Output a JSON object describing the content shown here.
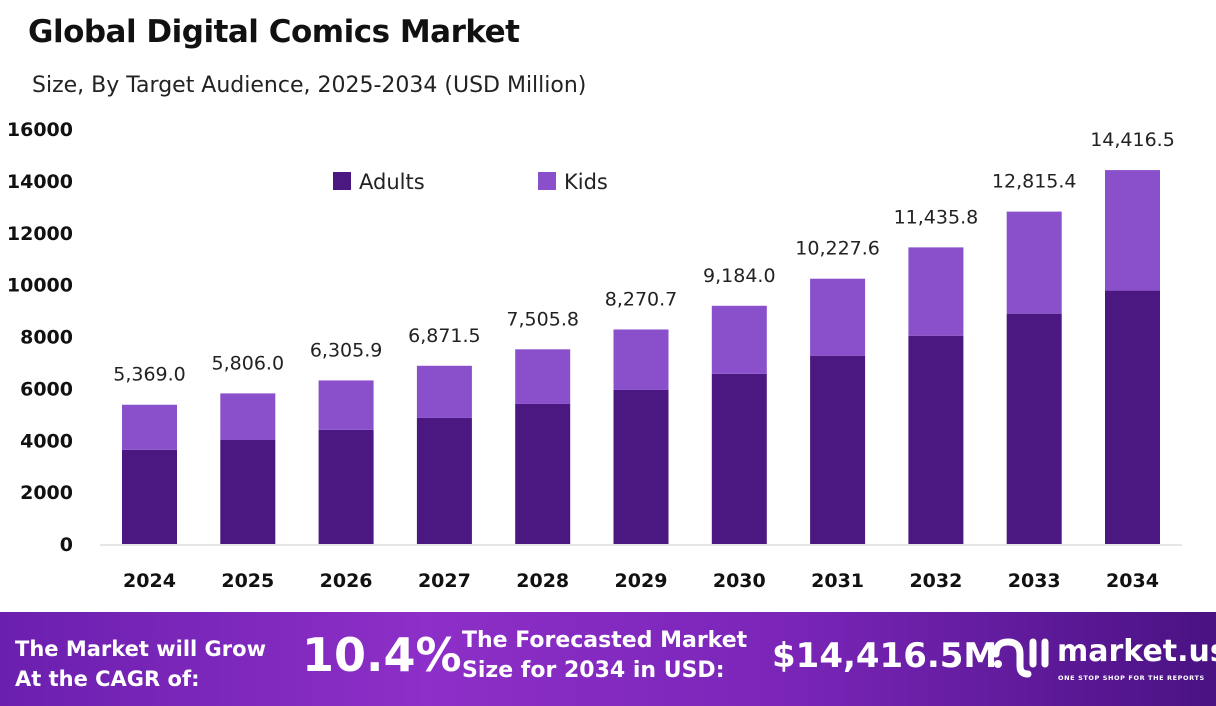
{
  "chart_data": {
    "type": "bar",
    "stacked": true,
    "title": "Global Digital Comics Market",
    "subtitle": "Size, By Target Audience, 2025-2034 (USD Million)",
    "categories": [
      "2024",
      "2025",
      "2026",
      "2027",
      "2028",
      "2029",
      "2030",
      "2031",
      "2032",
      "2033",
      "2034"
    ],
    "series": [
      {
        "name": "Adults",
        "color": "#4b1780",
        "values": [
          3630,
          4010,
          4400,
          4860,
          5400,
          5940,
          6560,
          7260,
          8030,
          8880,
          9770
        ]
      },
      {
        "name": "Kids",
        "color": "#8a4fcb",
        "values": [
          1739,
          1796,
          1906,
          2011,
          2106,
          2331,
          2624,
          2968,
          3406,
          3935,
          4646
        ]
      }
    ],
    "totals": [
      5369.0,
      5806.0,
      6305.9,
      6871.5,
      7505.8,
      8270.7,
      9184.0,
      10227.6,
      11435.8,
      12815.4,
      14416.5
    ],
    "total_labels": [
      "5,369.0",
      "5,806.0",
      "6,305.9",
      "6,871.5",
      "7,505.8",
      "8,270.7",
      "9,184.0",
      "10,227.6",
      "11,435.8",
      "12,815.4",
      "14,416.5"
    ],
    "ylim": [
      0,
      16000
    ],
    "yticks": [
      "0",
      "2000",
      "4000",
      "6000",
      "8000",
      "10000",
      "12000",
      "14000",
      "16000"
    ],
    "grid": false,
    "legend_position": "top-center"
  },
  "footer": {
    "cagr_text_line1": "The Market will Grow",
    "cagr_text_line2": "At the CAGR of:",
    "cagr_value": "10.4%",
    "forecast_line1": "The Forecasted Market",
    "forecast_line2": "Size for 2034 in USD:",
    "forecast_value": "$14,416.5M",
    "logo_name": "market.us",
    "logo_tagline": "ONE STOP SHOP FOR THE REPORTS"
  }
}
